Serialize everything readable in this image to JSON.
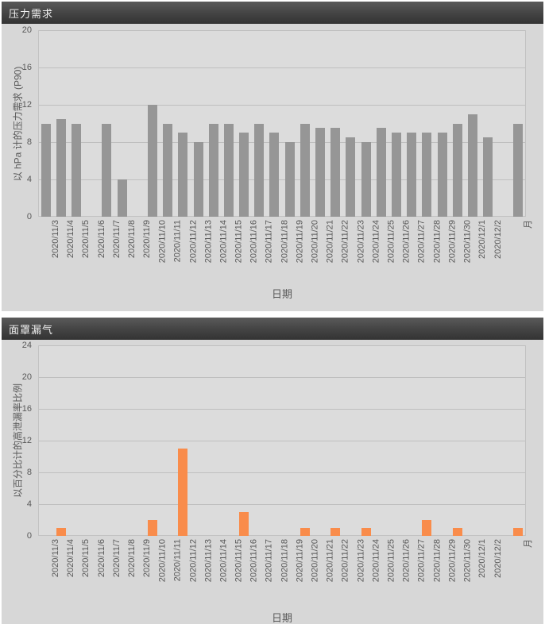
{
  "panels": [
    {
      "header": "压力需求"
    },
    {
      "header": "面罩漏气"
    }
  ],
  "chart_data": [
    {
      "type": "bar",
      "title": "压力需求",
      "xlabel": "日期",
      "ylabel": "以 hPa 计的压力需求  (P90)",
      "categories": [
        "2020/11/3",
        "2020/11/4",
        "2020/11/5",
        "2020/11/6",
        "2020/11/7",
        "2020/11/8",
        "2020/11/9",
        "2020/11/10",
        "2020/11/11",
        "2020/11/12",
        "2020/11/13",
        "2020/11/14",
        "2020/11/15",
        "2020/11/16",
        "2020/11/17",
        "2020/11/18",
        "2020/11/19",
        "2020/11/20",
        "2020/11/21",
        "2020/11/22",
        "2020/11/23",
        "2020/11/24",
        "2020/11/25",
        "2020/11/26",
        "2020/11/27",
        "2020/11/28",
        "2020/11/29",
        "2020/11/30",
        "2020/12/1",
        "2020/12/2",
        "月"
      ],
      "values": [
        10,
        10.5,
        10,
        null,
        10,
        4,
        null,
        12,
        10,
        9,
        8,
        10,
        10,
        9,
        10,
        9,
        8,
        10,
        9.5,
        9.5,
        8.5,
        8,
        9.5,
        9,
        9,
        9,
        9,
        10,
        11,
        8.5,
        10
      ],
      "ylim": [
        0,
        20
      ],
      "yticks": [
        0,
        4,
        8,
        12,
        16,
        20
      ],
      "bar_color": "#969696",
      "grid": true,
      "legend": false,
      "gap_before_last_category": true
    },
    {
      "type": "bar",
      "title": "面罩漏气",
      "xlabel": "日期",
      "ylabel": "以百分比计的高泄漏率比例",
      "categories": [
        "2020/11/3",
        "2020/11/4",
        "2020/11/5",
        "2020/11/6",
        "2020/11/7",
        "2020/11/8",
        "2020/11/9",
        "2020/11/10",
        "2020/11/11",
        "2020/11/12",
        "2020/11/13",
        "2020/11/14",
        "2020/11/15",
        "2020/11/16",
        "2020/11/17",
        "2020/11/18",
        "2020/11/19",
        "2020/11/20",
        "2020/11/21",
        "2020/11/22",
        "2020/11/23",
        "2020/11/24",
        "2020/11/25",
        "2020/11/26",
        "2020/11/27",
        "2020/11/28",
        "2020/11/29",
        "2020/11/30",
        "2020/12/1",
        "2020/12/2",
        "月"
      ],
      "values": [
        0,
        1,
        0,
        null,
        0,
        0,
        null,
        2,
        0,
        11,
        0,
        0,
        0,
        3,
        0,
        0,
        0,
        1,
        0,
        1,
        0,
        1,
        0,
        0,
        0,
        2,
        0,
        1,
        0,
        0,
        1
      ],
      "ylim": [
        0,
        24
      ],
      "yticks": [
        0,
        4,
        8,
        12,
        16,
        20,
        24
      ],
      "bar_color": "#F98C4B",
      "grid": true,
      "legend": false,
      "gap_before_last_category": true
    }
  ],
  "colors": {
    "panel_background": "#d7d7d7",
    "plot_background": "#dcdcdc",
    "gridline": "#bfbfbf",
    "header_text": "#f2f2f2",
    "axis_text": "#595959",
    "pressure_bar": "#969696",
    "leak_bar": "#F98C4B"
  }
}
